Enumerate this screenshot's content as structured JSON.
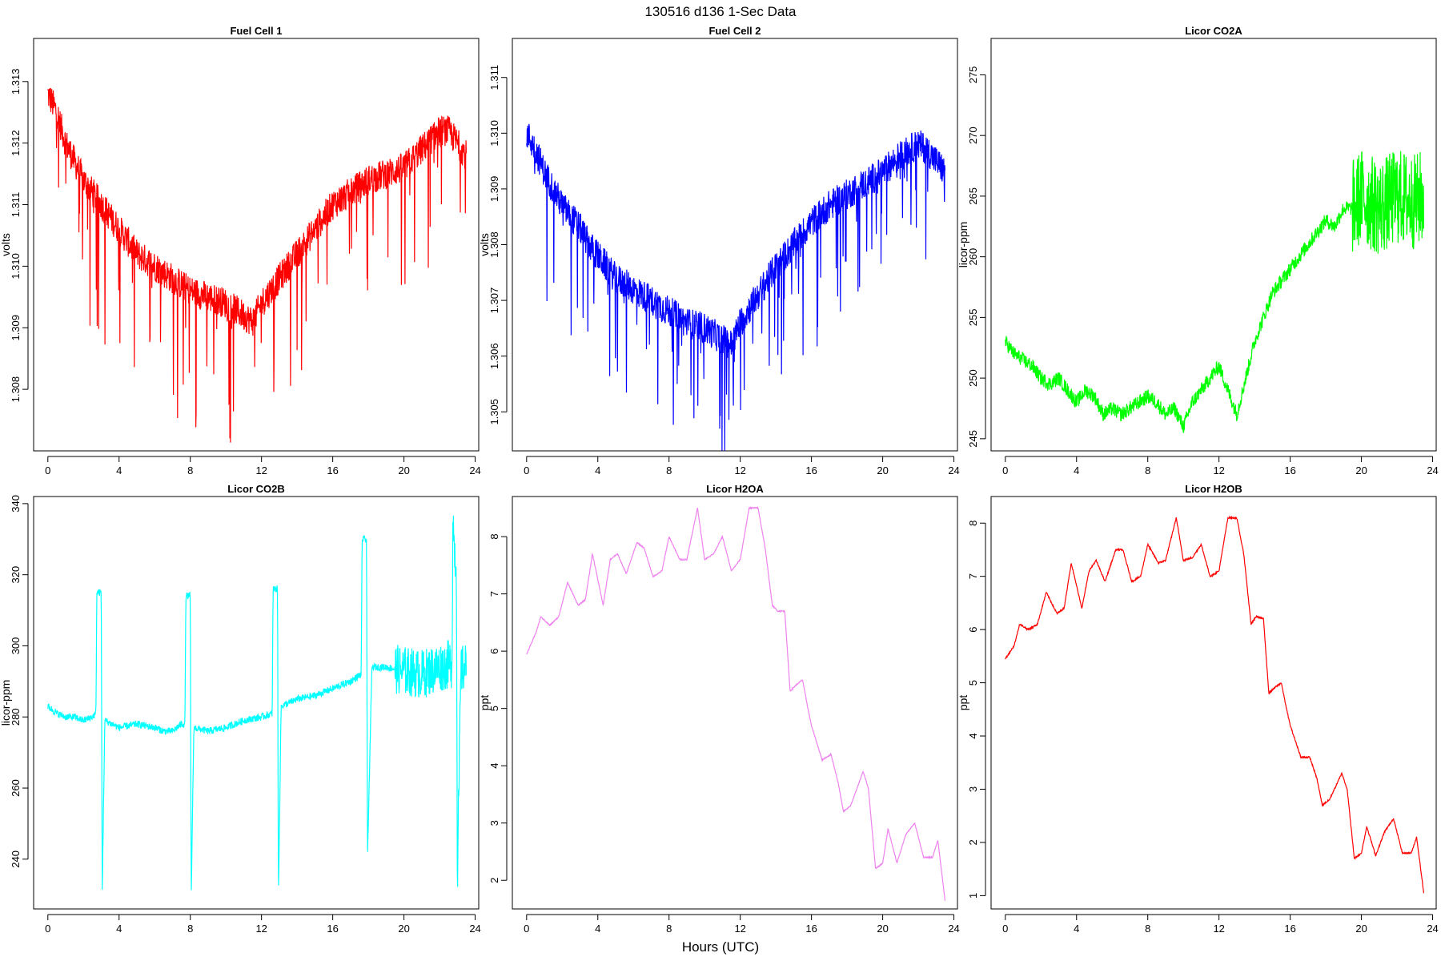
{
  "figure": {
    "title": "130516   d136   1-Sec Data",
    "xlabel": "Hours (UTC)"
  },
  "chart_data": [
    {
      "type": "line",
      "title": "Fuel Cell 1",
      "ylabel": "volts",
      "color": "#ff0000",
      "xlim": [
        -0.8,
        24.2
      ],
      "ylim": [
        1.307,
        1.3137
      ],
      "xticks": [
        0,
        4,
        8,
        12,
        16,
        20,
        24
      ],
      "yticks": [
        "1.308",
        "1.309",
        "1.310",
        "1.311",
        "1.312",
        "1.313"
      ],
      "noise": 0.00025,
      "spikes": 0.0022,
      "spike_dir": -1,
      "x": [
        0,
        0.5,
        1,
        1.5,
        2,
        2.5,
        3,
        3.5,
        4,
        5,
        6,
        7,
        8,
        9,
        10,
        11,
        11.5,
        12,
        13,
        14,
        15,
        16,
        17,
        18,
        19,
        20,
        21,
        22,
        22.5,
        23,
        23.5
      ],
      "y": [
        1.3128,
        1.3125,
        1.312,
        1.3117,
        1.3114,
        1.3112,
        1.311,
        1.3108,
        1.3106,
        1.3102,
        1.31,
        1.3098,
        1.3096,
        1.3095,
        1.3094,
        1.3092,
        1.3091,
        1.3094,
        1.3098,
        1.3102,
        1.3106,
        1.311,
        1.3112,
        1.3114,
        1.3115,
        1.3116,
        1.3119,
        1.3122,
        1.3122,
        1.312,
        1.3118
      ]
    },
    {
      "type": "line",
      "title": "Fuel Cell 2",
      "ylabel": "volts",
      "color": "#0000ff",
      "xlim": [
        -0.8,
        24.2
      ],
      "ylim": [
        1.3043,
        1.3117
      ],
      "xticks": [
        0,
        4,
        8,
        12,
        16,
        20,
        24
      ],
      "yticks": [
        "1.305",
        "1.306",
        "1.307",
        "1.308",
        "1.309",
        "1.310",
        "1.311"
      ],
      "noise": 0.00028,
      "spikes": 0.0022,
      "spike_dir": -1,
      "x": [
        0,
        0.5,
        1,
        1.5,
        2,
        2.5,
        3,
        3.5,
        4,
        5,
        6,
        7,
        8,
        9,
        10,
        11,
        11.5,
        12,
        13,
        14,
        15,
        16,
        17,
        18,
        19,
        20,
        21,
        22,
        22.5,
        23,
        23.5
      ],
      "y": [
        1.31,
        1.3097,
        1.3093,
        1.309,
        1.3087,
        1.3085,
        1.3083,
        1.308,
        1.3078,
        1.3074,
        1.3072,
        1.307,
        1.3068,
        1.3066,
        1.3065,
        1.3063,
        1.3062,
        1.3066,
        1.3071,
        1.3076,
        1.308,
        1.3084,
        1.3087,
        1.3089,
        1.3091,
        1.3093,
        1.3096,
        1.3098,
        1.3097,
        1.3095,
        1.3093
      ]
    },
    {
      "type": "line",
      "title": "Licor CO2A",
      "ylabel": "licor-ppm",
      "color": "#00ff00",
      "xlim": [
        -0.8,
        24.2
      ],
      "ylim": [
        244,
        278
      ],
      "xticks": [
        0,
        4,
        8,
        12,
        16,
        20,
        24
      ],
      "yticks": [
        "245",
        "250",
        "255",
        "260",
        "265",
        "270",
        "275"
      ],
      "noise": 0.6,
      "noise_seg": [
        [
          19.5,
          24,
          4.0
        ]
      ],
      "spikes": 0,
      "x": [
        0,
        0.5,
        1,
        1.5,
        2,
        2.5,
        3,
        3.5,
        4,
        4.5,
        5,
        5.5,
        6,
        6.5,
        7,
        7.5,
        8,
        8.5,
        9,
        9.5,
        10,
        10.5,
        11,
        11.5,
        12,
        12.5,
        13,
        13.5,
        14,
        14.5,
        15,
        15.5,
        16,
        16.5,
        17,
        17.5,
        18,
        18.5,
        19,
        19.5,
        20,
        21,
        22,
        23,
        23.5
      ],
      "y": [
        253,
        252,
        251.5,
        251,
        250,
        249.5,
        250,
        249,
        248,
        249,
        248.5,
        247,
        247.5,
        247,
        247.5,
        248,
        248.5,
        248,
        247,
        247.5,
        246,
        248,
        249,
        250,
        251,
        249,
        247,
        250,
        253,
        255,
        257,
        258,
        259,
        260,
        261,
        262,
        263,
        262.5,
        264,
        264,
        265,
        264,
        265,
        264.5,
        265
      ]
    },
    {
      "type": "line",
      "title": "Licor CO2B",
      "ylabel": "licor-ppm",
      "color": "#00ffff",
      "xlim": [
        -0.8,
        24.2
      ],
      "ylim": [
        226,
        342
      ],
      "xticks": [
        0,
        4,
        8,
        12,
        16,
        20,
        24
      ],
      "yticks": [
        "240",
        "260",
        "280",
        "300",
        "320",
        "340"
      ],
      "noise": 1.0,
      "noise_seg": [
        [
          19.5,
          24,
          7.0
        ]
      ],
      "spikes": 0,
      "x": [
        0,
        0.5,
        1,
        1.5,
        2,
        2.5,
        2.7,
        2.75,
        2.8,
        3.0,
        3.05,
        3.2,
        4,
        5,
        6,
        6.5,
        7,
        7.5,
        7.7,
        7.75,
        7.8,
        8.0,
        8.05,
        8.2,
        9,
        10,
        10.5,
        11,
        12,
        12.6,
        12.65,
        12.7,
        12.9,
        12.95,
        13.1,
        14,
        15,
        16,
        17,
        17.6,
        17.65,
        17.7,
        17.9,
        17.95,
        18.2,
        19,
        20,
        21,
        22,
        22.7,
        22.75,
        22.8,
        22.95,
        23.0,
        23.2,
        23.5
      ],
      "y": [
        283,
        281,
        280,
        280,
        279,
        280,
        281,
        315,
        315,
        315,
        230,
        279,
        277,
        278,
        277,
        276,
        276,
        278,
        278,
        314,
        314,
        314,
        229,
        277,
        276,
        277,
        278,
        279,
        280,
        281,
        316,
        316,
        316,
        229,
        283,
        285,
        286,
        288,
        290,
        292,
        330,
        330,
        330,
        240,
        294,
        294,
        293,
        292,
        294,
        295,
        338,
        330,
        320,
        235,
        293,
        294
      ]
    },
    {
      "type": "line",
      "title": "Licor H2OA",
      "ylabel": "ppt",
      "color": "#ee82ee",
      "xlim": [
        -0.8,
        24.2
      ],
      "ylim": [
        1.5,
        8.7
      ],
      "xticks": [
        0,
        4,
        8,
        12,
        16,
        20,
        24
      ],
      "yticks": [
        "2",
        "3",
        "4",
        "5",
        "6",
        "7",
        "8"
      ],
      "noise": 0.01,
      "spikes": 0,
      "x": [
        0,
        0.5,
        0.8,
        1.3,
        1.8,
        2.3,
        2.9,
        3.3,
        3.7,
        4.3,
        4.7,
        5.1,
        5.6,
        6.2,
        6.6,
        7.1,
        7.6,
        8.0,
        8.6,
        9.0,
        9.6,
        10.0,
        10.5,
        11.0,
        11.5,
        12.0,
        12.5,
        13.0,
        13.4,
        13.8,
        14.1,
        14.5,
        14.8,
        15.1,
        15.5,
        15.8,
        16.0,
        16.6,
        17.1,
        17.5,
        17.8,
        18.2,
        18.9,
        19.2,
        19.6,
        20.0,
        20.3,
        20.8,
        21.3,
        21.8,
        22.3,
        22.8,
        23.1,
        23.5
      ],
      "y": [
        5.95,
        6.3,
        6.6,
        6.45,
        6.6,
        7.2,
        6.8,
        6.9,
        7.7,
        6.8,
        7.6,
        7.7,
        7.35,
        7.9,
        7.8,
        7.3,
        7.4,
        8.0,
        7.6,
        7.6,
        8.5,
        7.6,
        7.7,
        8.0,
        7.4,
        7.6,
        8.5,
        8.5,
        7.8,
        6.8,
        6.7,
        6.7,
        5.3,
        5.4,
        5.5,
        5.0,
        4.7,
        4.1,
        4.2,
        3.7,
        3.2,
        3.3,
        3.9,
        3.6,
        2.2,
        2.3,
        2.9,
        2.3,
        2.8,
        3.0,
        2.4,
        2.4,
        2.7,
        1.65
      ]
    },
    {
      "type": "line",
      "title": "Licor H2OB",
      "ylabel": "ppt",
      "color": "#ff0000",
      "xlim": [
        -0.8,
        24.2
      ],
      "ylim": [
        0.75,
        8.5
      ],
      "xticks": [
        0,
        4,
        8,
        12,
        16,
        20,
        24
      ],
      "yticks": [
        "1",
        "2",
        "3",
        "4",
        "5",
        "6",
        "7",
        "8"
      ],
      "noise": 0.015,
      "spikes": 0,
      "x": [
        0,
        0.5,
        0.8,
        1.3,
        1.8,
        2.3,
        2.9,
        3.3,
        3.7,
        4.3,
        4.7,
        5.1,
        5.6,
        6.2,
        6.6,
        7.1,
        7.6,
        8.0,
        8.6,
        9.0,
        9.6,
        10.0,
        10.5,
        11.0,
        11.5,
        12.0,
        12.5,
        13.0,
        13.4,
        13.8,
        14.1,
        14.5,
        14.8,
        15.1,
        15.5,
        15.8,
        16.0,
        16.6,
        17.1,
        17.5,
        17.8,
        18.2,
        18.9,
        19.2,
        19.6,
        20.0,
        20.3,
        20.8,
        21.3,
        21.8,
        22.3,
        22.8,
        23.1,
        23.5
      ],
      "y": [
        5.45,
        5.7,
        6.1,
        6.0,
        6.1,
        6.7,
        6.3,
        6.4,
        7.25,
        6.4,
        7.1,
        7.3,
        6.9,
        7.5,
        7.5,
        6.9,
        7.0,
        7.6,
        7.25,
        7.3,
        8.1,
        7.3,
        7.35,
        7.6,
        7.0,
        7.1,
        8.1,
        8.1,
        7.4,
        6.1,
        6.25,
        6.2,
        4.8,
        4.9,
        5.0,
        4.5,
        4.2,
        3.6,
        3.6,
        3.2,
        2.7,
        2.8,
        3.3,
        3.0,
        1.7,
        1.8,
        2.3,
        1.75,
        2.2,
        2.45,
        1.8,
        1.8,
        2.1,
        1.05
      ]
    }
  ]
}
